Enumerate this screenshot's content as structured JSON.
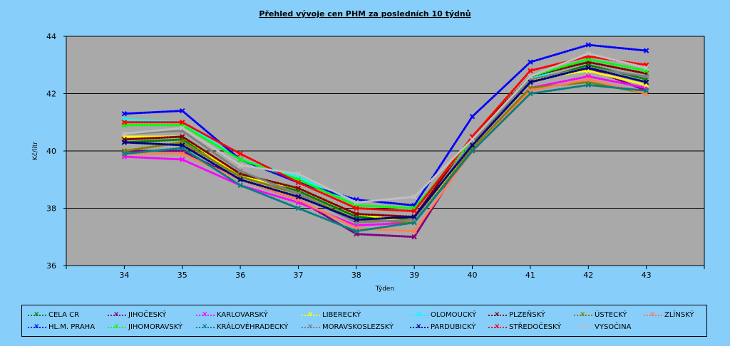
{
  "chart_data": {
    "type": "line",
    "title": "Přehled vývoje cen PHM za posledních 10 týdnů",
    "xlabel": "Týden",
    "ylabel": "Kč/litr",
    "x": [
      "34",
      "35",
      "36",
      "37",
      "38",
      "39",
      "40",
      "41",
      "42",
      "43"
    ],
    "xlim": [
      33,
      44
    ],
    "ylim": [
      36,
      44
    ],
    "yticks": [
      "36",
      "38",
      "40",
      "42",
      "44"
    ],
    "grid": true,
    "legend_position": "bottom",
    "series": [
      {
        "name": "CELA CR",
        "color": "#008000",
        "values": [
          40.3,
          40.4,
          39.2,
          38.6,
          37.7,
          37.6,
          40.3,
          42.4,
          43.0,
          42.5
        ]
      },
      {
        "name": "JIHOČESKÝ",
        "color": "#800080",
        "values": [
          40.0,
          40.0,
          39.0,
          38.3,
          37.1,
          37.0,
          40.2,
          42.4,
          42.9,
          42.1
        ]
      },
      {
        "name": "KARLOVARSKÝ",
        "color": "#FF00FF",
        "values": [
          39.8,
          39.7,
          38.8,
          38.2,
          37.4,
          37.5,
          40.0,
          42.2,
          42.6,
          42.2
        ]
      },
      {
        "name": "LIBERECKÝ",
        "color": "#FFFF00",
        "values": [
          40.5,
          40.5,
          39.1,
          38.7,
          37.8,
          37.5,
          40.2,
          42.5,
          42.8,
          42.3
        ]
      },
      {
        "name": "OLOMOUCKÝ",
        "color": "#00FFFF",
        "values": [
          41.1,
          41.0,
          39.7,
          39.1,
          38.1,
          38.0,
          40.4,
          42.5,
          43.2,
          42.8
        ]
      },
      {
        "name": "PLZEŇSKÝ",
        "color": "#800000",
        "values": [
          40.4,
          40.5,
          39.2,
          38.7,
          37.8,
          37.7,
          40.5,
          42.6,
          43.1,
          42.7
        ]
      },
      {
        "name": "ÚSTECKÝ",
        "color": "#808000",
        "values": [
          40.0,
          40.3,
          39.1,
          38.5,
          37.6,
          37.5,
          40.1,
          42.2,
          42.4,
          42.0
        ]
      },
      {
        "name": "ZLÍNSKÝ",
        "color": "#FF7F50",
        "values": [
          39.9,
          39.9,
          39.0,
          38.3,
          37.3,
          37.2,
          40.0,
          42.1,
          42.5,
          42.0
        ]
      },
      {
        "name": "HL.M. PRAHA",
        "color": "#0000FF",
        "values": [
          41.3,
          41.4,
          39.7,
          38.9,
          38.3,
          38.1,
          41.2,
          43.1,
          43.7,
          43.5
        ]
      },
      {
        "name": "JIHOMORAVSKÝ",
        "color": "#00FF00",
        "values": [
          40.9,
          40.9,
          39.7,
          39.0,
          38.1,
          38.0,
          40.4,
          42.6,
          43.2,
          42.8
        ]
      },
      {
        "name": "KRÁLOVÉHRADECKÝ",
        "color": "#008080",
        "values": [
          39.9,
          40.1,
          38.8,
          38.0,
          37.2,
          37.5,
          40.0,
          42.0,
          42.3,
          42.1
        ]
      },
      {
        "name": "MORAVSKOSLEZSKÝ",
        "color": "#808080",
        "values": [
          40.6,
          40.7,
          39.3,
          38.5,
          37.5,
          37.6,
          40.3,
          42.5,
          42.9,
          42.6
        ]
      },
      {
        "name": "PARDUBICKÝ",
        "color": "#000080",
        "values": [
          40.3,
          40.2,
          39.0,
          38.4,
          37.6,
          37.7,
          40.2,
          42.4,
          42.9,
          42.4
        ]
      },
      {
        "name": "STŘEDOČESKÝ",
        "color": "#FF0000",
        "values": [
          41.0,
          41.0,
          39.9,
          38.9,
          38.0,
          37.9,
          40.5,
          42.8,
          43.3,
          43.0
        ]
      },
      {
        "name": "VYSOČINA",
        "color": "#C0C0C0",
        "values": [
          40.6,
          40.8,
          39.5,
          39.2,
          38.2,
          38.4,
          40.4,
          42.6,
          43.4,
          42.9
        ]
      }
    ]
  }
}
